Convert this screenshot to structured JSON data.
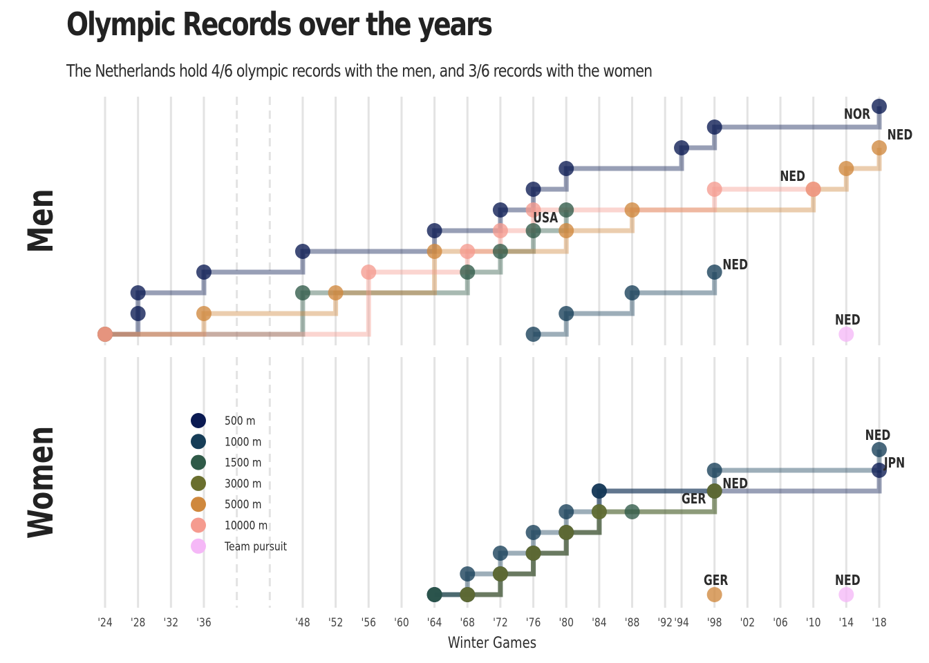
{
  "title": "Olympic Records over the years",
  "subtitle": "The Netherlands hold 4/6 olympic records with the men, and 3/6 records with the women",
  "chart_data": {
    "type": "line",
    "step": "post",
    "xlabel": "Winter Games",
    "x_ticks": [
      1924,
      1928,
      1932,
      1936,
      1948,
      1952,
      1956,
      1960,
      1964,
      1968,
      1972,
      1976,
      1980,
      1984,
      1988,
      1992,
      1994,
      1998,
      2002,
      2006,
      2010,
      2014,
      2018
    ],
    "x_tick_labels": [
      "'24",
      "'28",
      "'32",
      "'36",
      "'48",
      "'52",
      "'56",
      "'60",
      "'64",
      "'68",
      "'72",
      "'76",
      "'80",
      "'84",
      "'88",
      "'92",
      "'94",
      "'98",
      "'02",
      "'06",
      "'10",
      "'14",
      "'18"
    ],
    "no_games": [
      1940,
      1944
    ],
    "x_range": [
      1924,
      2018
    ],
    "y_axis": "record rank (not labelled)",
    "legend": {
      "position": "left inside Women panel",
      "entries": [
        {
          "name": "500 m",
          "color": "#0a1a52"
        },
        {
          "name": "1000 m",
          "color": "#163d57"
        },
        {
          "name": "1500 m",
          "color": "#2f5a48"
        },
        {
          "name": "3000 m",
          "color": "#6a6f2e"
        },
        {
          "name": "5000 m",
          "color": "#cf883d"
        },
        {
          "name": "10000 m",
          "color": "#f59b8f"
        },
        {
          "name": "Team pursuit",
          "color": "#f5b8f7"
        }
      ]
    },
    "panels": [
      {
        "label": "Men",
        "series": [
          {
            "name": "500 m",
            "points": [
              [
                1924,
                1
              ],
              [
                1928,
                2
              ],
              [
                1928,
                3
              ],
              [
                1936,
                4
              ],
              [
                1948,
                5
              ],
              [
                1964,
                6
              ],
              [
                1972,
                7
              ],
              [
                1976,
                8
              ],
              [
                1980,
                9
              ],
              [
                1994,
                10
              ],
              [
                1998,
                11
              ],
              [
                2018,
                12
              ]
            ],
            "end_label": "NOR"
          },
          {
            "name": "1000 m",
            "points": [
              [
                1976,
                1
              ],
              [
                1980,
                2
              ],
              [
                1988,
                3
              ],
              [
                1998,
                4
              ]
            ],
            "end_label": "NED"
          },
          {
            "name": "1500 m",
            "points": [
              [
                1924,
                1
              ],
              [
                1948,
                3
              ],
              [
                1968,
                4
              ],
              [
                1972,
                5
              ],
              [
                1976,
                6
              ],
              [
                1980,
                7
              ]
            ],
            "end_label": "USA"
          },
          {
            "name": "5000 m",
            "points": [
              [
                1924,
                1
              ],
              [
                1936,
                2
              ],
              [
                1952,
                3
              ],
              [
                1964,
                5
              ],
              [
                1980,
                6
              ],
              [
                1988,
                7
              ],
              [
                2010,
                8
              ],
              [
                2014,
                9
              ],
              [
                2018,
                10
              ]
            ],
            "end_label": "NED"
          },
          {
            "name": "10000 m",
            "points": [
              [
                1924,
                1
              ],
              [
                1956,
                4
              ],
              [
                1968,
                5
              ],
              [
                1972,
                6
              ],
              [
                1976,
                7
              ],
              [
                1998,
                8
              ],
              [
                2010,
                8
              ]
            ],
            "end_label": "NED"
          },
          {
            "name": "Team pursuit",
            "points": [
              [
                2014,
                1
              ]
            ],
            "end_label": "NED"
          }
        ]
      },
      {
        "label": "Women",
        "series": [
          {
            "name": "500 m",
            "points": [
              [
                1964,
                1
              ],
              [
                1968,
                1
              ],
              [
                1972,
                2
              ],
              [
                1976,
                3
              ],
              [
                1980,
                4
              ],
              [
                1984,
                6
              ],
              [
                1998,
                6
              ],
              [
                2018,
                7
              ]
            ],
            "end_label": "JPN"
          },
          {
            "name": "1000 m",
            "points": [
              [
                1964,
                1
              ],
              [
                1968,
                2
              ],
              [
                1972,
                3
              ],
              [
                1976,
                4
              ],
              [
                1980,
                5
              ],
              [
                1984,
                6
              ],
              [
                1998,
                7
              ],
              [
                2018,
                8
              ]
            ],
            "end_label": "NED"
          },
          {
            "name": "1500 m",
            "points": [
              [
                1964,
                1
              ],
              [
                1968,
                1
              ],
              [
                1972,
                2
              ],
              [
                1976,
                3
              ],
              [
                1980,
                4
              ],
              [
                1984,
                5
              ],
              [
                1988,
                5
              ],
              [
                1998,
                6
              ]
            ],
            "end_label": "NED"
          },
          {
            "name": "3000 m",
            "points": [
              [
                1968,
                1
              ],
              [
                1972,
                2
              ],
              [
                1976,
                3
              ],
              [
                1980,
                4
              ],
              [
                1984,
                5
              ],
              [
                1998,
                6
              ]
            ],
            "end_label": "GER"
          },
          {
            "name": "5000 m",
            "points": [
              [
                1998,
                1
              ]
            ],
            "end_label": "GER"
          },
          {
            "name": "Team pursuit",
            "points": [
              [
                2014,
                1
              ]
            ],
            "end_label": "NED"
          }
        ]
      }
    ]
  }
}
